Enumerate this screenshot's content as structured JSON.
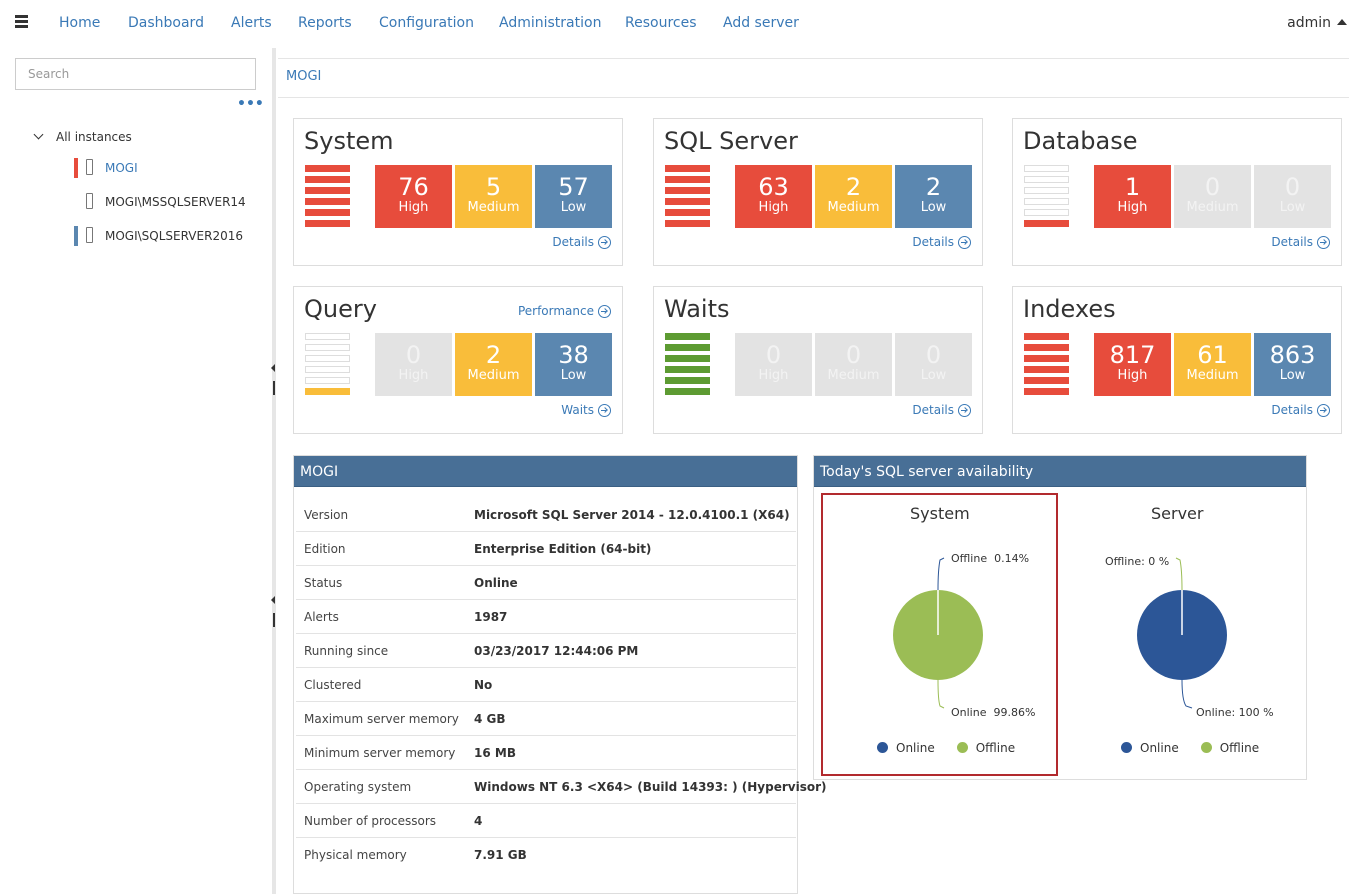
{
  "nav": {
    "items": [
      "Home",
      "Dashboard",
      "Alerts",
      "Reports",
      "Configuration",
      "Administration",
      "Resources",
      "Add server"
    ],
    "user": "admin"
  },
  "sidebar": {
    "search_placeholder": "Search",
    "more": "•••",
    "root": "All instances",
    "instances": [
      {
        "label": "MOGI",
        "severity_color": "#e74c3c",
        "selected": true
      },
      {
        "label": "MOGI\\MSSQLSERVER14",
        "severity_color": "",
        "selected": false
      },
      {
        "label": "MOGI\\SQLSERVER2016",
        "severity_color": "#5b87b0",
        "selected": false
      }
    ]
  },
  "breadcrumb": "MOGI",
  "colors": {
    "high": "#e74c3c",
    "medium": "#f9bd3a",
    "low": "#5b87b0",
    "ok": "#5d9b32",
    "dim": "#e3e3e3",
    "header": "#486f96",
    "online": "#2c5697",
    "offline": "#9bbd55"
  },
  "cards": [
    {
      "title": "System",
      "link": "Details",
      "high": "76",
      "medium": "5",
      "low": "57",
      "gauge": "high"
    },
    {
      "title": "SQL Server",
      "link": "Details",
      "high": "63",
      "medium": "2",
      "low": "2",
      "gauge": "high"
    },
    {
      "title": "Database",
      "link": "Details",
      "high": "1",
      "medium": "0",
      "low": "0",
      "gauge": "high-low"
    },
    {
      "title": "Query",
      "link": "Waits",
      "top_link": "Performance",
      "high": "0",
      "medium": "2",
      "low": "38",
      "gauge": "medium-low"
    },
    {
      "title": "Waits",
      "link": "Details",
      "high": "0",
      "medium": "0",
      "low": "0",
      "gauge": "ok"
    },
    {
      "title": "Indexes",
      "link": "Details",
      "high": "817",
      "medium": "61",
      "low": "863",
      "gauge": "high"
    }
  ],
  "labels": {
    "high": "High",
    "medium": "Medium",
    "low": "Low"
  },
  "info": {
    "title": "MOGI",
    "rows": [
      {
        "key": "Version",
        "value": "Microsoft SQL Server 2014 - 12.0.4100.1 (X64)"
      },
      {
        "key": "Edition",
        "value": "Enterprise Edition (64-bit)"
      },
      {
        "key": "Status",
        "value": "Online"
      },
      {
        "key": "Alerts",
        "value": "1987"
      },
      {
        "key": "Running since",
        "value": "03/23/2017 12:44:06 PM"
      },
      {
        "key": "Clustered",
        "value": "No"
      },
      {
        "key": "Maximum server memory",
        "value": "4 GB"
      },
      {
        "key": "Minimum server memory",
        "value": "16 MB"
      },
      {
        "key": "Operating system",
        "value": "Windows NT 6.3 <X64> (Build 14393: ) (Hypervisor)"
      },
      {
        "key": "Number of processors",
        "value": "4"
      },
      {
        "key": "Physical memory",
        "value": "7.91 GB"
      }
    ]
  },
  "availability": {
    "title": "Today's SQL server availability",
    "legend": {
      "online": "Online",
      "offline": "Offline"
    },
    "charts": [
      {
        "title": "System",
        "online": 99.86,
        "offline": 0.14,
        "online_label": "Online  99.86%",
        "offline_label": "Offline  0.14%",
        "main": "offline"
      },
      {
        "title": "Server",
        "online": 100,
        "offline": 0,
        "online_label": "Online: 100 %",
        "offline_label": "Offline: 0 %",
        "main": "online"
      }
    ]
  },
  "chart_data": [
    {
      "type": "pie",
      "title": "System",
      "categories": [
        "Online",
        "Offline"
      ],
      "values": [
        99.86,
        0.14
      ]
    },
    {
      "type": "pie",
      "title": "Server",
      "categories": [
        "Online",
        "Offline"
      ],
      "values": [
        100,
        0
      ]
    }
  ]
}
